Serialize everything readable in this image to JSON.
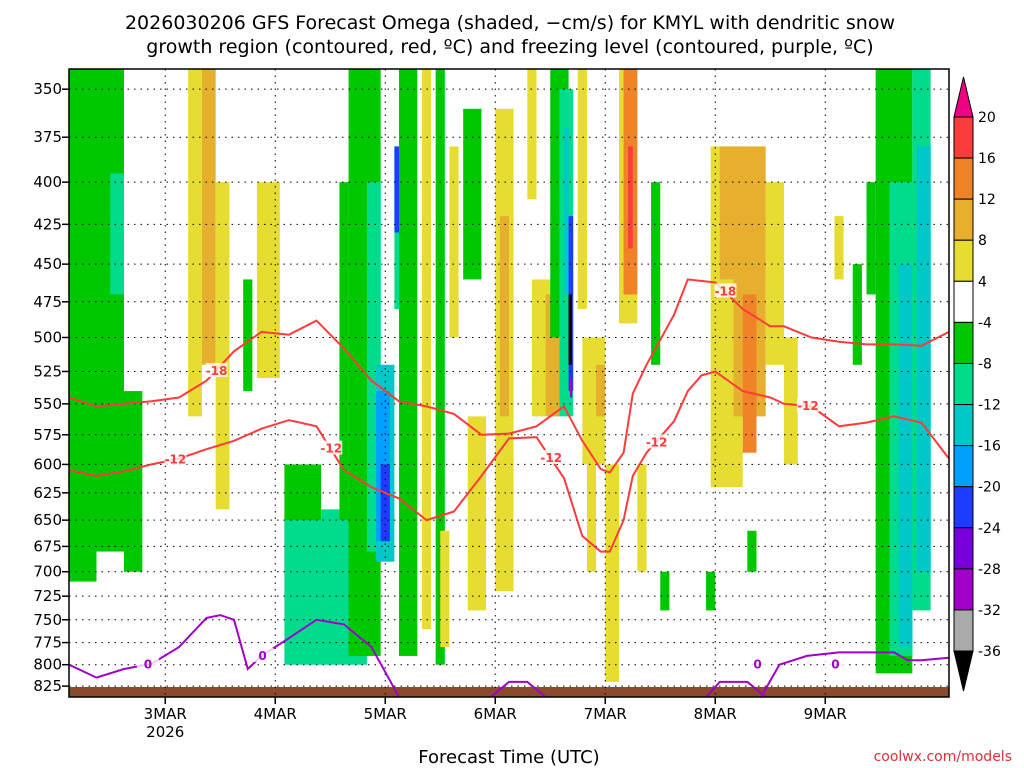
{
  "chart_data": {
    "type": "heatmap",
    "title_line1": "2026030206 GFS Forecast Omega (shaded, −cm/s) for KMYL with dendritic snow",
    "title_line2": "growth region (contoured, red, ºC) and freezing level (contoured, purple, ºC)",
    "xlabel": "Forecast Time (UTC)",
    "ylabel": "",
    "credit": "coolwx.com/models",
    "x_range_hours": [
      -21,
      171
    ],
    "x_ticks": [
      {
        "hour": 0,
        "label": "3MAR",
        "sublabel": "2026"
      },
      {
        "hour": 24,
        "label": "4MAR"
      },
      {
        "hour": 48,
        "label": "5MAR"
      },
      {
        "hour": 72,
        "label": "6MAR"
      },
      {
        "hour": 96,
        "label": "7MAR"
      },
      {
        "hour": 120,
        "label": "8MAR"
      },
      {
        "hour": 144,
        "label": "9MAR"
      }
    ],
    "y_range_hpa": [
      838,
      340
    ],
    "y_ticks": [
      350,
      375,
      400,
      425,
      450,
      475,
      500,
      525,
      550,
      575,
      600,
      625,
      650,
      675,
      700,
      725,
      750,
      775,
      800,
      825
    ],
    "colorbar": {
      "levels": [
        -36,
        -32,
        -28,
        -24,
        -20,
        -16,
        -12,
        -8,
        -4,
        4,
        8,
        12,
        16,
        20
      ],
      "labels": [
        "20",
        "16",
        "12",
        "8",
        "4",
        "-4",
        "-8",
        "-12",
        "-16",
        "-20",
        "-24",
        "-28",
        "-32",
        "-36"
      ],
      "colors": [
        "#000000",
        "#aaaaaa",
        "#a000c8",
        "#7800dc",
        "#1e3cff",
        "#00a0ff",
        "#00c8c8",
        "#00dc8c",
        "#00c800",
        "#ffffff",
        "#e6dc32",
        "#e6af2d",
        "#f08228",
        "#fa3c3c",
        "#f00082"
      ]
    },
    "omega_cells": [
      {
        "t0": -21,
        "t1": -15,
        "p0": 340,
        "p1": 710,
        "v": -6
      },
      {
        "t0": -15,
        "t1": -9,
        "p0": 340,
        "p1": 680,
        "v": -6
      },
      {
        "t0": -12,
        "t1": -9,
        "p0": 395,
        "p1": 470,
        "v": -10
      },
      {
        "t0": -9,
        "t1": -5,
        "p0": 540,
        "p1": 700,
        "v": -6
      },
      {
        "t0": 5,
        "t1": 8,
        "p0": 340,
        "p1": 560,
        "v": 6
      },
      {
        "t0": 8,
        "t1": 11,
        "p0": 340,
        "p1": 520,
        "v": 10
      },
      {
        "t0": 11,
        "t1": 14,
        "p0": 400,
        "p1": 640,
        "v": 6
      },
      {
        "t0": 17,
        "t1": 19,
        "p0": 460,
        "p1": 540,
        "v": -6
      },
      {
        "t0": 20,
        "t1": 25,
        "p0": 400,
        "p1": 530,
        "v": 5
      },
      {
        "t0": 26,
        "t1": 34,
        "p0": 600,
        "p1": 700,
        "v": -8
      },
      {
        "t0": 26,
        "t1": 44,
        "p0": 650,
        "p1": 800,
        "v": -10
      },
      {
        "t0": 34,
        "t1": 44,
        "p0": 640,
        "p1": 760,
        "v": -12
      },
      {
        "t0": 38,
        "t1": 40,
        "p0": 400,
        "p1": 650,
        "v": -6
      },
      {
        "t0": 40,
        "t1": 47,
        "p0": 340,
        "p1": 790,
        "v": -6
      },
      {
        "t0": 44,
        "t1": 47,
        "p0": 400,
        "p1": 680,
        "v": -10
      },
      {
        "t0": 46,
        "t1": 50,
        "p0": 520,
        "p1": 690,
        "v": -14
      },
      {
        "t0": 46,
        "t1": 49,
        "p0": 540,
        "p1": 670,
        "v": -18
      },
      {
        "t0": 47,
        "t1": 49,
        "p0": 600,
        "p1": 670,
        "v": -22
      },
      {
        "t0": 50,
        "t1": 51,
        "p0": 380,
        "p1": 480,
        "v": -12
      },
      {
        "t0": 50,
        "t1": 51,
        "p0": 380,
        "p1": 430,
        "v": -22
      },
      {
        "t0": 51,
        "t1": 55,
        "p0": 340,
        "p1": 790,
        "v": -6
      },
      {
        "t0": 56,
        "t1": 58,
        "p0": 340,
        "p1": 760,
        "v": 5
      },
      {
        "t0": 59,
        "t1": 61,
        "p0": 340,
        "p1": 800,
        "v": -6
      },
      {
        "t0": 60,
        "t1": 62,
        "p0": 660,
        "p1": 780,
        "v": 6
      },
      {
        "t0": 62,
        "t1": 64,
        "p0": 380,
        "p1": 500,
        "v": 5
      },
      {
        "t0": 65,
        "t1": 69,
        "p0": 360,
        "p1": 460,
        "v": -6
      },
      {
        "t0": 66,
        "t1": 70,
        "p0": 560,
        "p1": 740,
        "v": 6
      },
      {
        "t0": 72,
        "t1": 76,
        "p0": 360,
        "p1": 720,
        "v": 6
      },
      {
        "t0": 73,
        "t1": 75,
        "p0": 420,
        "p1": 560,
        "v": 10
      },
      {
        "t0": 79,
        "t1": 81,
        "p0": 340,
        "p1": 410,
        "v": 5
      },
      {
        "t0": 80,
        "t1": 84,
        "p0": 460,
        "p1": 560,
        "v": 6
      },
      {
        "t0": 83,
        "t1": 86,
        "p0": 470,
        "p1": 560,
        "v": 10
      },
      {
        "t0": 84,
        "t1": 88,
        "p0": 340,
        "p1": 500,
        "v": -6
      },
      {
        "t0": 86,
        "t1": 89,
        "p0": 350,
        "p1": 560,
        "v": -10
      },
      {
        "t0": 87,
        "t1": 88,
        "p0": 370,
        "p1": 470,
        "v": -16
      },
      {
        "t0": 88,
        "t1": 89,
        "p0": 420,
        "p1": 540,
        "v": -22
      },
      {
        "t0": 88,
        "t1": 88.7,
        "p0": 470,
        "p1": 520,
        "v": -40
      },
      {
        "t0": 88.3,
        "t1": 88.8,
        "p0": 530,
        "p1": 545,
        "v": -30
      },
      {
        "t0": 90,
        "t1": 92,
        "p0": 340,
        "p1": 480,
        "v": 6
      },
      {
        "t0": 91,
        "t1": 96,
        "p0": 500,
        "p1": 600,
        "v": 6
      },
      {
        "t0": 94,
        "t1": 96,
        "p0": 520,
        "p1": 560,
        "v": 10
      },
      {
        "t0": 92,
        "t1": 94,
        "p0": 550,
        "p1": 700,
        "v": 5
      },
      {
        "t0": 99,
        "t1": 103,
        "p0": 340,
        "p1": 490,
        "v": 6
      },
      {
        "t0": 100,
        "t1": 103,
        "p0": 340,
        "p1": 470,
        "v": 14
      },
      {
        "t0": 101,
        "t1": 102,
        "p0": 380,
        "p1": 440,
        "v": 18
      },
      {
        "t0": 96,
        "t1": 99,
        "p0": 600,
        "p1": 820,
        "v": 6
      },
      {
        "t0": 106,
        "t1": 108,
        "p0": 400,
        "p1": 520,
        "v": -6
      },
      {
        "t0": 103,
        "t1": 105,
        "p0": 600,
        "p1": 700,
        "v": 5
      },
      {
        "t0": 108,
        "t1": 110,
        "p0": 700,
        "p1": 740,
        "v": -6
      },
      {
        "t0": 118,
        "t1": 120,
        "p0": 700,
        "p1": 740,
        "v": -6
      },
      {
        "t0": 119,
        "t1": 126,
        "p0": 380,
        "p1": 620,
        "v": 6
      },
      {
        "t0": 121,
        "t1": 131,
        "p0": 380,
        "p1": 460,
        "v": 10
      },
      {
        "t0": 124,
        "t1": 131,
        "p0": 400,
        "p1": 560,
        "v": 10
      },
      {
        "t0": 126,
        "t1": 129,
        "p0": 470,
        "p1": 590,
        "v": 14
      },
      {
        "t0": 131,
        "t1": 135,
        "p0": 400,
        "p1": 520,
        "v": 6
      },
      {
        "t0": 135,
        "t1": 138,
        "p0": 500,
        "p1": 600,
        "v": 6
      },
      {
        "t0": 127,
        "t1": 129,
        "p0": 660,
        "p1": 700,
        "v": -6
      },
      {
        "t0": 146,
        "t1": 148,
        "p0": 420,
        "p1": 460,
        "v": 6
      },
      {
        "t0": 150,
        "t1": 152,
        "p0": 450,
        "p1": 520,
        "v": -6
      },
      {
        "t0": 153,
        "t1": 155,
        "p0": 400,
        "p1": 470,
        "v": -6
      },
      {
        "t0": 155,
        "t1": 163,
        "p0": 340,
        "p1": 810,
        "v": -6
      },
      {
        "t0": 158,
        "t1": 163,
        "p0": 400,
        "p1": 790,
        "v": -10
      },
      {
        "t0": 160,
        "t1": 163,
        "p0": 450,
        "p1": 780,
        "v": -14
      },
      {
        "t0": 163,
        "t1": 167,
        "p0": 340,
        "p1": 740,
        "v": -12
      },
      {
        "t0": 164,
        "t1": 167,
        "p0": 380,
        "p1": 700,
        "v": -14
      }
    ],
    "contours": [
      {
        "label": "-18",
        "color": "#ff3b3b",
        "label_at_hour": [
          11,
          122
        ],
        "points": [
          [
            -21,
            545
          ],
          [
            -15,
            552
          ],
          [
            -9,
            550
          ],
          [
            -3,
            548
          ],
          [
            3,
            545
          ],
          [
            9,
            532
          ],
          [
            15,
            510
          ],
          [
            21,
            496
          ],
          [
            27,
            498
          ],
          [
            33,
            488
          ],
          [
            39,
            508
          ],
          [
            45,
            532
          ],
          [
            51,
            548
          ],
          [
            57,
            552
          ],
          [
            63,
            558
          ],
          [
            69,
            575
          ],
          [
            75,
            574
          ],
          [
            81,
            568
          ],
          [
            87,
            552
          ],
          [
            91,
            580
          ],
          [
            95,
            604
          ],
          [
            97,
            607
          ],
          [
            100,
            590
          ],
          [
            102,
            542
          ],
          [
            105,
            520
          ],
          [
            111,
            484
          ],
          [
            114,
            460
          ],
          [
            120,
            462
          ],
          [
            126,
            480
          ],
          [
            132,
            492
          ],
          [
            135,
            492
          ],
          [
            141,
            500
          ],
          [
            147,
            503
          ],
          [
            153,
            505
          ],
          [
            159,
            505
          ],
          [
            165,
            506
          ],
          [
            171,
            496
          ]
        ]
      },
      {
        "label": "-12",
        "color": "#ff3b3b",
        "label_at_hour": [
          2,
          36,
          84,
          107,
          140
        ],
        "points": [
          [
            -21,
            605
          ],
          [
            -15,
            610
          ],
          [
            -9,
            606
          ],
          [
            -3,
            600
          ],
          [
            3,
            595
          ],
          [
            9,
            587
          ],
          [
            15,
            580
          ],
          [
            21,
            570
          ],
          [
            27,
            563
          ],
          [
            33,
            568
          ],
          [
            39,
            605
          ],
          [
            45,
            620
          ],
          [
            51,
            630
          ],
          [
            57,
            650
          ],
          [
            63,
            642
          ],
          [
            69,
            610
          ],
          [
            75,
            578
          ],
          [
            81,
            577
          ],
          [
            87,
            612
          ],
          [
            91,
            665
          ],
          [
            95,
            680
          ],
          [
            97,
            680
          ],
          [
            100,
            650
          ],
          [
            102,
            610
          ],
          [
            105,
            590
          ],
          [
            111,
            564
          ],
          [
            114,
            540
          ],
          [
            117,
            528
          ],
          [
            120,
            525
          ],
          [
            126,
            540
          ],
          [
            132,
            545
          ],
          [
            135,
            550
          ],
          [
            141,
            552
          ],
          [
            147,
            568
          ],
          [
            153,
            565
          ],
          [
            159,
            560
          ],
          [
            165,
            565
          ],
          [
            171,
            595
          ]
        ]
      },
      {
        "label": "0",
        "color": "#a000c8",
        "label_at_hour": [
          -4,
          21,
          129,
          146
        ],
        "points": [
          [
            -21,
            800
          ],
          [
            -15,
            815
          ],
          [
            -9,
            805
          ],
          [
            -3,
            799
          ],
          [
            3,
            780
          ],
          [
            9,
            748
          ],
          [
            12,
            745
          ],
          [
            15,
            750
          ],
          [
            18,
            805
          ],
          [
            21,
            790
          ],
          [
            27,
            770
          ],
          [
            33,
            750
          ],
          [
            39,
            755
          ],
          [
            45,
            780
          ],
          [
            51,
            838
          ]
        ]
      },
      {
        "label": "0b",
        "color": "#a000c8",
        "label_at_hour": [],
        "points": [
          [
            118,
            838
          ],
          [
            121,
            820
          ],
          [
            127,
            820
          ],
          [
            131,
            838
          ]
        ]
      },
      {
        "label": "0c",
        "color": "#a000c8",
        "label_at_hour": [],
        "points": [
          [
            130,
            838
          ],
          [
            134,
            800
          ],
          [
            140,
            790
          ],
          [
            147,
            786
          ],
          [
            153,
            786
          ],
          [
            159,
            786
          ],
          [
            162,
            795
          ],
          [
            165,
            795
          ],
          [
            171,
            792
          ]
        ]
      },
      {
        "label": "0d",
        "color": "#a000c8",
        "label_at_hour": [],
        "points": [
          [
            71,
            838
          ],
          [
            75,
            820
          ],
          [
            79,
            820
          ],
          [
            83,
            838
          ]
        ]
      }
    ]
  }
}
